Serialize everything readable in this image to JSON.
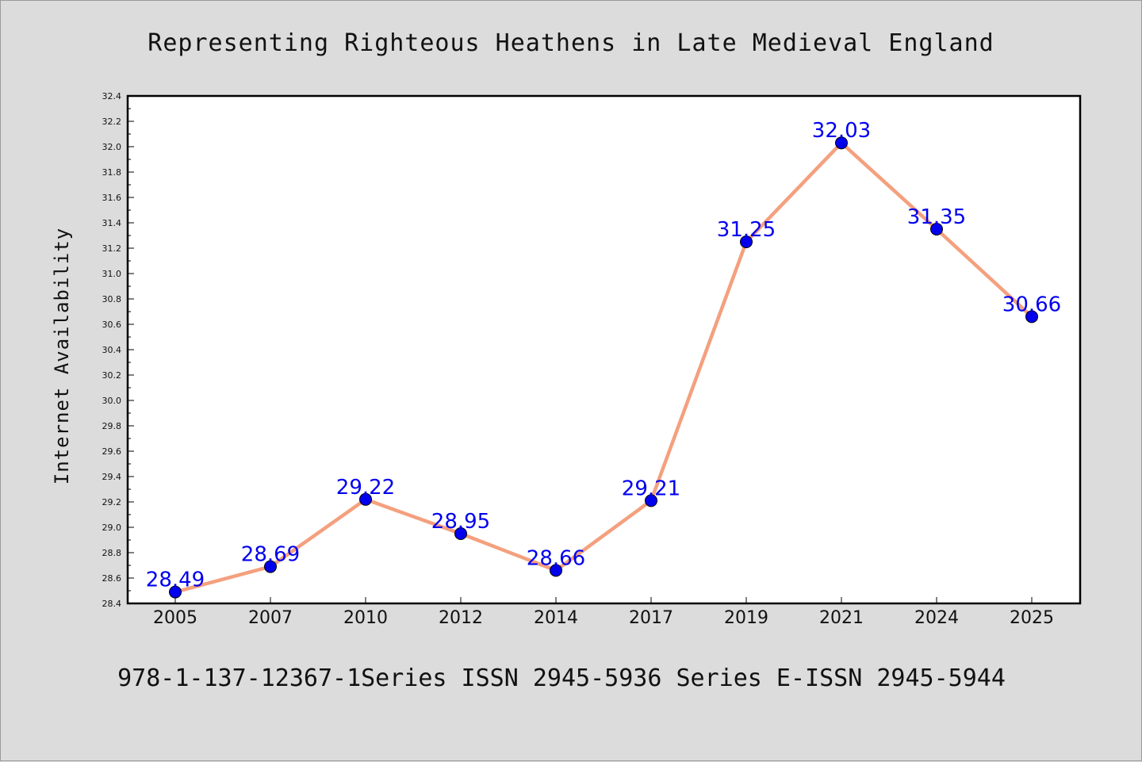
{
  "chart_data": {
    "type": "line",
    "title": "Representing Righteous Heathens in Late Medieval England",
    "xlabel": "",
    "ylabel": "Internet Availability",
    "categories": [
      "2005",
      "2007",
      "2010",
      "2012",
      "2014",
      "2017",
      "2019",
      "2021",
      "2024",
      "2025"
    ],
    "series": [
      {
        "values": [
          28.49,
          28.69,
          29.22,
          28.95,
          28.66,
          29.21,
          31.25,
          32.03,
          31.35,
          30.66
        ]
      }
    ],
    "data_labels": [
      "28.49",
      "28.69",
      "29.22",
      "28.95",
      "28.66",
      "29.21",
      "31.25",
      "32.03",
      "31.35",
      "30.66"
    ],
    "ylim": [
      28.4,
      32.4
    ],
    "yticks": [
      "28.4",
      "28.6",
      "28.8",
      "29.0",
      "29.2",
      "29.4",
      "29.6",
      "29.8",
      "30.0",
      "30.2",
      "30.4",
      "30.6",
      "30.8",
      "31.0",
      "31.2",
      "31.4",
      "31.6",
      "31.8",
      "32.0",
      "32.2",
      "32.4"
    ],
    "grid": false,
    "legend": "none",
    "colors": {
      "line": "#f4a07e",
      "marker": "#0000ee",
      "data_label": "#0000ee",
      "plot_bg": "#ffffff",
      "page_bg": "#dcdcdc"
    }
  },
  "footer": "978-1-137-12367-1Series ISSN 2945-5936 Series E-ISSN 2945-5944"
}
